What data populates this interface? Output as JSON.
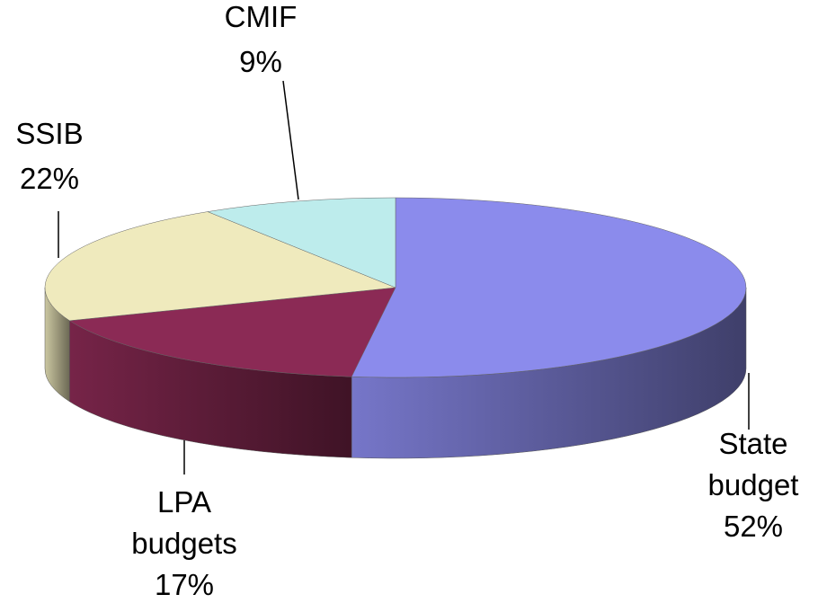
{
  "chart_data": {
    "type": "pie",
    "categories": [
      "State budget",
      "LPA budgets",
      "SSIB",
      "CMIF"
    ],
    "values": [
      52,
      17,
      22,
      9
    ],
    "value_labels": [
      "52%",
      "17%",
      "22%",
      "9%"
    ],
    "colors": [
      "#8b8bec",
      "#8b2a55",
      "#efeabd",
      "#bdecec"
    ],
    "style": "3d"
  }
}
